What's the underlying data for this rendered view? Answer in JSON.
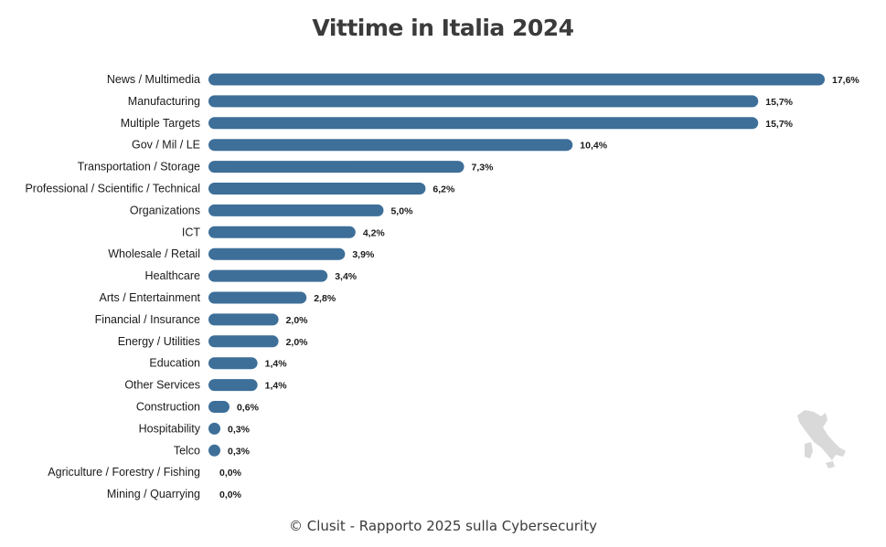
{
  "chart_data": {
    "type": "bar",
    "orientation": "horizontal",
    "title": "Vittime in Italia 2024",
    "categories": [
      "News / Multimedia",
      "Manufacturing",
      "Multiple Targets",
      "Gov / Mil / LE",
      "Transportation / Storage",
      "Professional / Scientific / Technical",
      "Organizations",
      "ICT",
      "Wholesale / Retail",
      "Healthcare",
      "Arts / Entertainment",
      "Financial / Insurance",
      "Energy / Utilities",
      "Education",
      "Other Services",
      "Construction",
      "Hospitability",
      "Telco",
      "Agriculture / Forestry / Fishing",
      "Mining / Quarrying"
    ],
    "values": [
      17.6,
      15.7,
      15.7,
      10.4,
      7.3,
      6.2,
      5.0,
      4.2,
      3.9,
      3.4,
      2.8,
      2.0,
      2.0,
      1.4,
      1.4,
      0.6,
      0.3,
      0.3,
      0.0,
      0.0
    ],
    "value_labels": [
      "17,6%",
      "15,7%",
      "15,7%",
      "10,4%",
      "7,3%",
      "6,2%",
      "5,0%",
      "4,2%",
      "3,9%",
      "3,4%",
      "2,8%",
      "2,0%",
      "2,0%",
      "1,4%",
      "1,4%",
      "0,6%",
      "0,3%",
      "0,3%",
      "0,0%",
      "0,0%"
    ],
    "xlabel": "",
    "ylabel": "",
    "xlim": [
      0,
      17.6
    ],
    "grid": false,
    "bar_color": "#3d6f99"
  },
  "footer": {
    "credit": "© Clusit - Rapporto 2025 sulla Cybersecurity"
  },
  "decoration": {
    "map_icon": "italy-map-icon",
    "map_color": "#d9d9d9"
  }
}
